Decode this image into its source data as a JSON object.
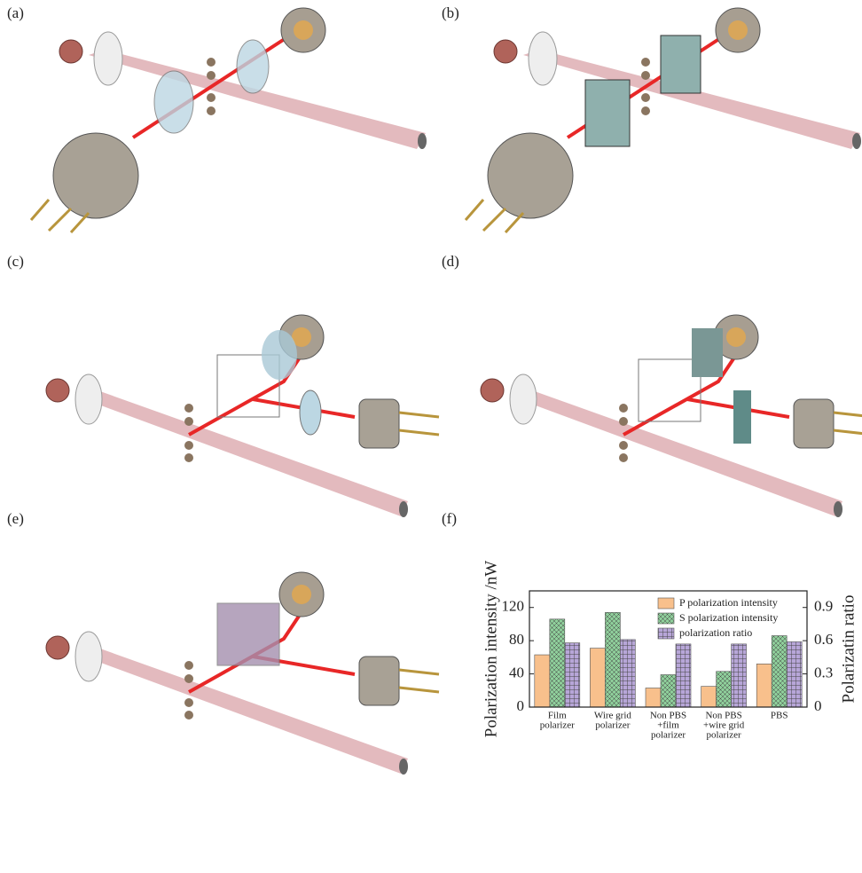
{
  "panels": [
    "(a)",
    "(b)",
    "(c)",
    "(d)",
    "(e)",
    "(f)"
  ],
  "chart_data": {
    "type": "bar",
    "categories": [
      [
        "Film",
        "polarizer"
      ],
      [
        "Wire grid",
        "polarizer"
      ],
      [
        "Non PBS",
        "+film",
        "polarizer"
      ],
      [
        "Non PBS",
        "+wire grid",
        "polarizer"
      ],
      [
        "PBS"
      ]
    ],
    "series": [
      {
        "name": "P polarization intensity",
        "color": "#f8c08c",
        "values": [
          63,
          71,
          23,
          25,
          52
        ]
      },
      {
        "name": "S polarization intensity",
        "color": "#8fcf9b",
        "values": [
          106,
          114,
          39,
          43,
          86
        ]
      },
      {
        "name": "polarization ratio",
        "color": "#b7a6d8",
        "axis": "y2",
        "values": [
          0.58,
          0.61,
          0.57,
          0.57,
          0.59
        ]
      }
    ],
    "ylabel": "Polarization intensity /nW",
    "y2label": "Polarizatin ratio",
    "ylim": [
      0,
      140
    ],
    "yticks": [
      0,
      40,
      80,
      120
    ],
    "y2lim": [
      0,
      1.05
    ],
    "y2ticks": [
      0,
      0.3,
      0.6,
      0.9
    ],
    "legend": "upper right"
  }
}
